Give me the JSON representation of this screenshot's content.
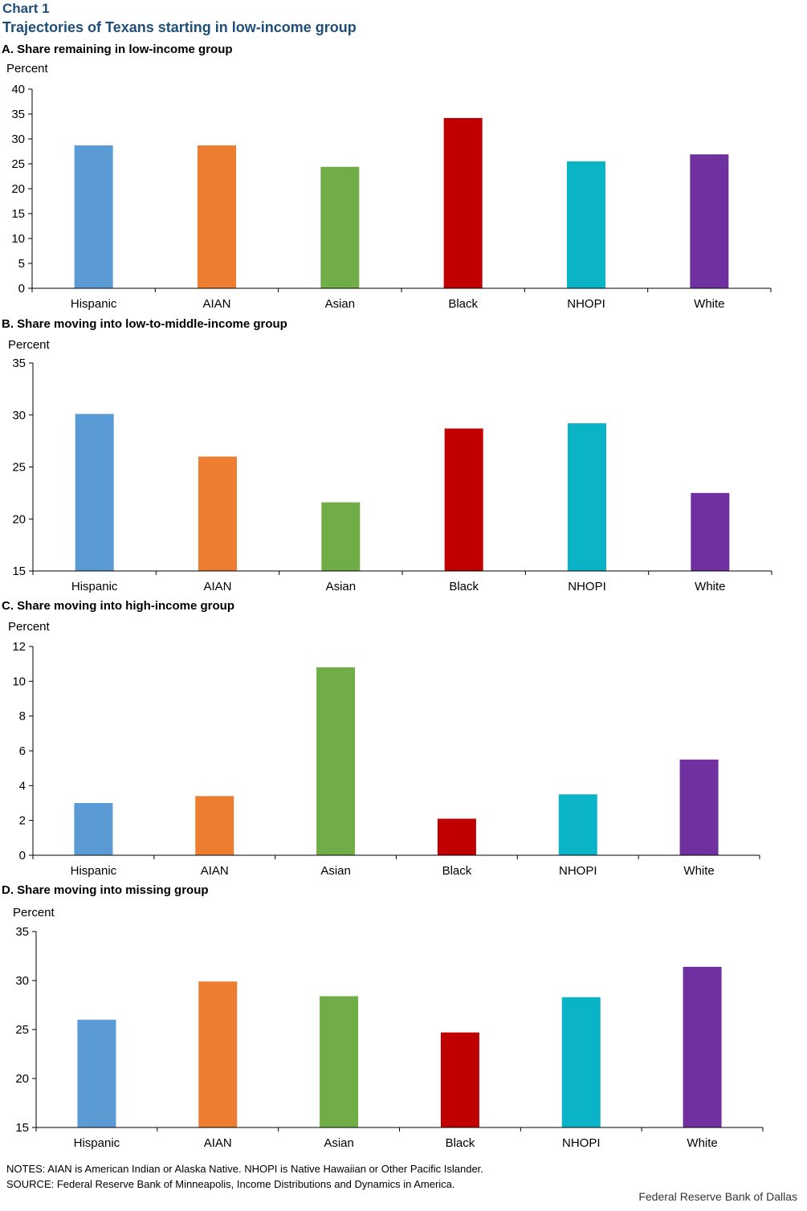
{
  "header": {
    "label": "Chart 1",
    "title": "Trajectories of Texans starting in low-income group"
  },
  "chart_data": [
    {
      "type": "bar",
      "title": "A. Share remaining in low-income group",
      "ylabel": "Percent",
      "xlabel": "",
      "categories": [
        "Hispanic",
        "AIAN",
        "Asian",
        "Black",
        "NHOPI",
        "White"
      ],
      "values": [
        28.7,
        28.7,
        24.4,
        34.2,
        25.5,
        26.9
      ],
      "ylim": [
        0,
        40
      ],
      "yticks": [
        0,
        5,
        10,
        15,
        20,
        25,
        30,
        35,
        40
      ],
      "colors": [
        "#5b9bd5",
        "#ed7d31",
        "#70ad47",
        "#c00000",
        "#0bb3c6",
        "#7030a0"
      ]
    },
    {
      "type": "bar",
      "title": "B. Share moving into low-to-middle-income group",
      "ylabel": "Percent",
      "xlabel": "",
      "categories": [
        "Hispanic",
        "AIAN",
        "Asian",
        "Black",
        "NHOPI",
        "White"
      ],
      "values": [
        30.1,
        26.0,
        21.6,
        28.7,
        29.2,
        22.5
      ],
      "ylim": [
        15,
        35
      ],
      "yticks": [
        15,
        20,
        25,
        30,
        35
      ],
      "colors": [
        "#5b9bd5",
        "#ed7d31",
        "#70ad47",
        "#c00000",
        "#0bb3c6",
        "#7030a0"
      ]
    },
    {
      "type": "bar",
      "title": "C. Share moving into high-income group",
      "ylabel": "Percent",
      "xlabel": "",
      "categories": [
        "Hispanic",
        "AIAN",
        "Asian",
        "Black",
        "NHOPI",
        "White"
      ],
      "values": [
        3.0,
        3.4,
        10.8,
        2.1,
        3.5,
        5.5
      ],
      "ylim": [
        0,
        12
      ],
      "yticks": [
        0,
        2,
        4,
        6,
        8,
        10,
        12
      ],
      "colors": [
        "#5b9bd5",
        "#ed7d31",
        "#70ad47",
        "#c00000",
        "#0bb3c6",
        "#7030a0"
      ]
    },
    {
      "type": "bar",
      "title": "D. Share moving into missing group",
      "ylabel": "Percent",
      "xlabel": "",
      "categories": [
        "Hispanic",
        "AIAN",
        "Asian",
        "Black",
        "NHOPI",
        "White"
      ],
      "values": [
        26.0,
        29.9,
        28.4,
        24.7,
        28.3,
        31.4
      ],
      "ylim": [
        15,
        35
      ],
      "yticks": [
        15,
        20,
        25,
        30,
        35
      ],
      "colors": [
        "#5b9bd5",
        "#ed7d31",
        "#70ad47",
        "#c00000",
        "#0bb3c6",
        "#7030a0"
      ]
    }
  ],
  "footer": {
    "notes": "NOTES: AIAN is American Indian or Alaska Native. NHOPI is Native Hawaiian or Other Pacific Islander.",
    "source": "SOURCE: Federal Reserve Bank of Minneapolis, Income Distributions and Dynamics in America.",
    "credit": "Federal Reserve Bank of Dallas"
  }
}
